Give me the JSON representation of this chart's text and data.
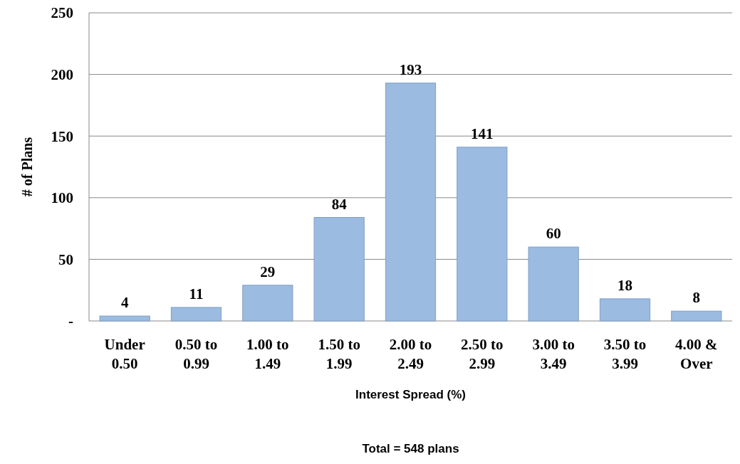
{
  "chart_data": {
    "type": "bar",
    "categories": [
      "Under 0.50",
      "0.50 to 0.99",
      "1.00 to 1.49",
      "1.50 to 1.99",
      "2.00 to 2.49",
      "2.50 to 2.99",
      "3.00 to 3.49",
      "3.50 to 3.99",
      "4.00 & Over"
    ],
    "values": [
      4,
      11,
      29,
      84,
      193,
      141,
      60,
      18,
      8
    ],
    "color": "#9bbbe0",
    "ylim": [
      0,
      250
    ],
    "yticks": [
      {
        "value": 0,
        "label": "-"
      },
      50,
      100,
      150,
      200,
      250
    ],
    "grid": "y",
    "data_labels": true,
    "xlabel": "Interest Spread (%)",
    "ylabel": "# of Plans",
    "annotations": [
      "Total = 548 plans"
    ]
  }
}
